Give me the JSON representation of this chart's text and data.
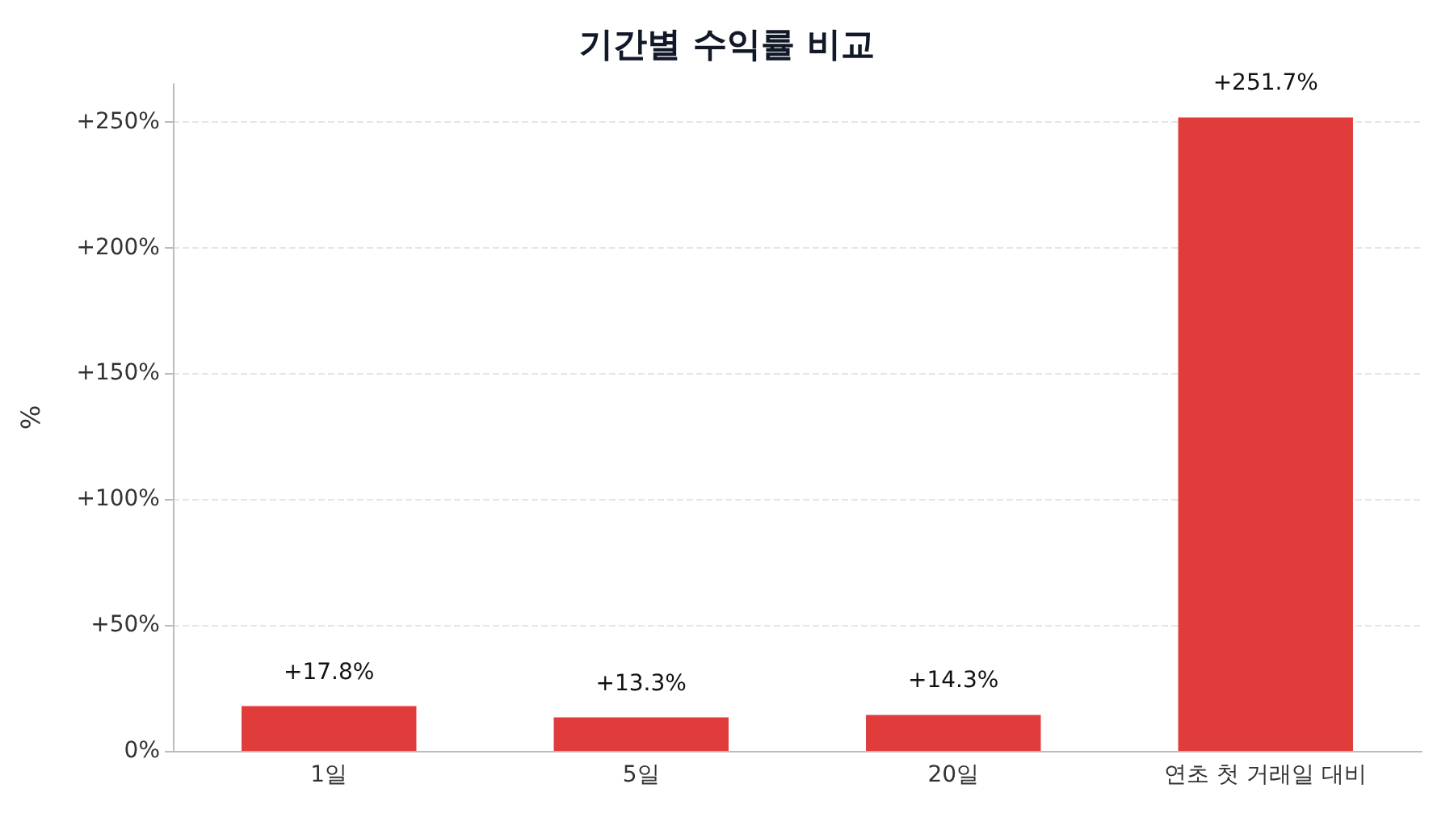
{
  "chart_data": {
    "type": "bar",
    "title": "기간별 수익률 비교",
    "ylabel": "%",
    "categories": [
      "1일",
      "5일",
      "20일",
      "연초 첫 거래일 대비"
    ],
    "values": [
      17.8,
      13.3,
      14.3,
      251.7
    ],
    "value_labels": [
      "+17.8%",
      "+13.3%",
      "+14.3%",
      "+251.7%"
    ],
    "color": "#e03c3c",
    "ylim": [
      0,
      265
    ],
    "yticks": [
      {
        "value": 0,
        "label": "0%"
      },
      {
        "value": 50,
        "label": "+50%"
      },
      {
        "value": 100,
        "label": "+100%"
      },
      {
        "value": 150,
        "label": "+150%"
      },
      {
        "value": 200,
        "label": "+200%"
      },
      {
        "value": 250,
        "label": "+250%"
      }
    ],
    "grid": "y"
  }
}
